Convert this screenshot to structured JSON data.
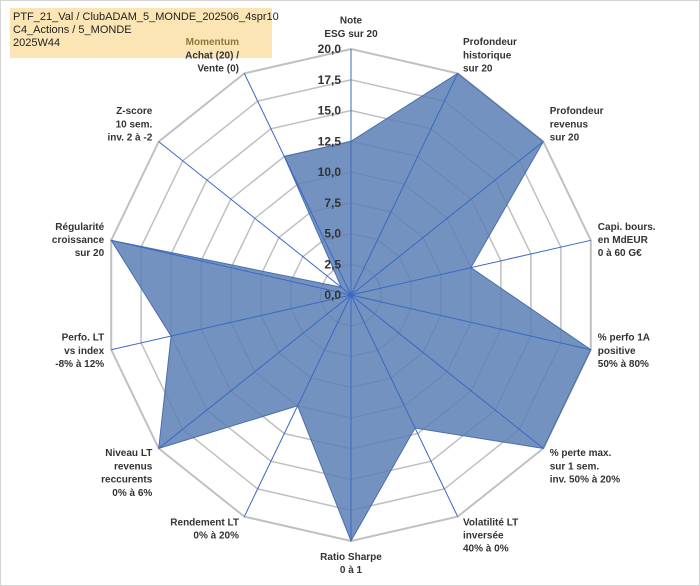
{
  "header": {
    "line1": "PTF_21_Val / ClubADAM_5_MONDE_202506_4spr10",
    "line2": "C4_Actions / 5_MONDE",
    "line3": "2025W44"
  },
  "chart_data": {
    "type": "radar",
    "rmax": 20,
    "ticks": [
      "0,0",
      "2,5",
      "5,0",
      "7,5",
      "10,0",
      "12,5",
      "15,0",
      "17,5",
      "20,0"
    ],
    "axes": [
      {
        "lines": [
          "Note",
          "ESG sur 20"
        ],
        "value": 12.5
      },
      {
        "lines": [
          "Profondeur",
          "historique",
          "sur 20"
        ],
        "value": 20
      },
      {
        "lines": [
          "Profondeur",
          "revenus",
          "sur 20"
        ],
        "value": 20
      },
      {
        "lines": [
          "Capi. bours.",
          "en MdEUR",
          "0 à 60 G€"
        ],
        "value": 10
      },
      {
        "lines": [
          "% perfo 1A",
          "positive",
          "50% à 80%"
        ],
        "value": 20
      },
      {
        "lines": [
          "% perte max.",
          "sur 1 sem.",
          "inv. 50% à 20%"
        ],
        "value": 20
      },
      {
        "lines": [
          "Volatilité LT",
          "inversée",
          "40% à 0%"
        ],
        "value": 12
      },
      {
        "lines": [
          "Ratio Sharpe",
          "0 à 1"
        ],
        "value": 20
      },
      {
        "lines": [
          "Rendement LT",
          "0% à 20%"
        ],
        "value": 10
      },
      {
        "lines": [
          "Niveau LT",
          "revenus",
          "reccurents",
          "0% à 6%"
        ],
        "value": 20
      },
      {
        "lines": [
          "Perfo. LT",
          "vs index",
          "-8% à 12%"
        ],
        "value": 15
      },
      {
        "lines": [
          "Régularité",
          "croissance",
          "sur 20"
        ],
        "value": 20
      },
      {
        "lines": [
          "Z-score",
          "10 sem.",
          "inv. 2 à -2"
        ],
        "value": 1
      },
      {
        "lines": [
          "Momentum",
          "Achat (20) /",
          "Vente (0)"
        ],
        "value": 12.5
      }
    ],
    "colors": {
      "fill": "#5a7fb5",
      "stroke": "#4a70aa",
      "grid": "#c0c0c0",
      "spoke": "#3a68c4",
      "momentum_label": "#8a7a3a"
    }
  }
}
